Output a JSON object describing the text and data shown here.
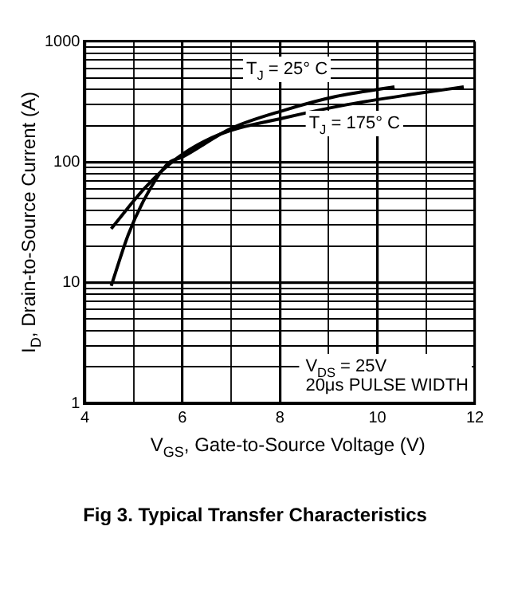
{
  "chart_data": {
    "type": "line",
    "title": "Fig 3.  Typical Transfer Characteristics",
    "xlabel": "V$_{GS}$, Gate-to-Source Voltage (V)",
    "ylabel": "I$_{D}$, Drain-to-Source Current (A)",
    "log": "y",
    "grid": true,
    "legend": false,
    "marker": "none",
    "line_style": "solid",
    "xlim": [
      4,
      12
    ],
    "xticks": [
      4,
      {
        "value": 5,
        "label": null
      },
      6,
      {
        "value": 7,
        "label": null
      },
      8,
      {
        "value": 9,
        "label": null
      },
      10,
      {
        "value": 11,
        "label": null
      },
      12
    ],
    "ylim": [
      1,
      1000
    ],
    "yticks": [
      1,
      {
        "value": 2,
        "label": null
      },
      {
        "value": 3,
        "label": null
      },
      {
        "value": 4,
        "label": null
      },
      {
        "value": 5,
        "label": null
      },
      {
        "value": 6,
        "label": null
      },
      {
        "value": 7,
        "label": null
      },
      {
        "value": 8,
        "label": null
      },
      {
        "value": 9,
        "label": null
      },
      10,
      {
        "value": 20,
        "label": null
      },
      {
        "value": 30,
        "label": null
      },
      {
        "value": 40,
        "label": null
      },
      {
        "value": 50,
        "label": null
      },
      {
        "value": 60,
        "label": null
      },
      {
        "value": 70,
        "label": null
      },
      {
        "value": 80,
        "label": null
      },
      {
        "value": 90,
        "label": null
      },
      100,
      {
        "value": 200,
        "label": null
      },
      {
        "value": 300,
        "label": null
      },
      {
        "value": 400,
        "label": null
      },
      {
        "value": 500,
        "label": null
      },
      {
        "value": 600,
        "label": null
      },
      {
        "value": 700,
        "label": null
      },
      {
        "value": 800,
        "label": null
      },
      {
        "value": 900,
        "label": null
      },
      1000
    ],
    "series": [
      {
        "name": "T$_{J}$ = 25° C",
        "color": "#000000",
        "x": [
          4.54,
          4.89,
          5.23,
          5.7,
          6.0,
          7.0,
          8.1,
          9.15,
          10.35
        ],
        "values": [
          9.4,
          25,
          50,
          97,
          110,
          190,
          270,
          350,
          420
        ]
      },
      {
        "name": "T$_{J}$ = 175° C",
        "color": "#000000",
        "x": [
          4.54,
          5.23,
          5.88,
          6.77,
          8.08,
          9.39,
          10.82,
          11.77
        ],
        "values": [
          28,
          61,
          107,
          170,
          232,
          300,
          370,
          420
        ]
      }
    ],
    "annotations": [
      "V$_{DS}$ = 25V",
      "20μs PULSE WIDTH"
    ]
  }
}
